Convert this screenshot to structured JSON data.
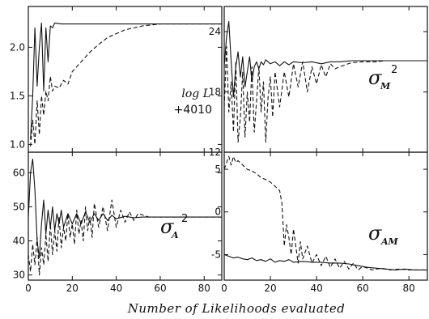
{
  "xlabel": "Number of Likelihoods evaluated",
  "chart_data": [
    {
      "id": "logL",
      "type": "line",
      "annotation": {
        "line1": "log L",
        "line2": "+4010"
      },
      "xlim": [
        0,
        88
      ],
      "ylim": [
        0.92,
        2.42
      ],
      "xticks": [
        0,
        20,
        40,
        60,
        80
      ],
      "yticks": [
        1.0,
        1.5,
        2.0
      ],
      "ytick_labels": [
        "1.0",
        "1.5",
        "2.0"
      ],
      "ytick_side": "left",
      "series": [
        {
          "style": "solid",
          "x": [
            1,
            2,
            3,
            4,
            5,
            6,
            7,
            8,
            9,
            10,
            11,
            12,
            15,
            20,
            30,
            40,
            50,
            60,
            70,
            80,
            88
          ],
          "y": [
            1.05,
            1.5,
            2.2,
            1.6,
            2.0,
            2.25,
            1.55,
            2.2,
            1.85,
            2.22,
            2.2,
            2.25,
            2.24,
            2.24,
            2.24,
            2.24,
            2.24,
            2.24,
            2.24,
            2.24,
            2.24
          ]
        },
        {
          "style": "dashed",
          "x": [
            1,
            2,
            3,
            4,
            5,
            6,
            7,
            8,
            9,
            10,
            11,
            12,
            14,
            16,
            18,
            20,
            24,
            28,
            32,
            36,
            40,
            44,
            48,
            52,
            56,
            60,
            70,
            80,
            88
          ],
          "y": [
            0.98,
            1.25,
            1.0,
            1.45,
            1.1,
            1.5,
            1.3,
            1.55,
            1.45,
            1.7,
            1.55,
            1.6,
            1.58,
            1.66,
            1.62,
            1.75,
            1.85,
            1.95,
            2.03,
            2.1,
            2.14,
            2.18,
            2.2,
            2.22,
            2.23,
            2.24,
            2.24,
            2.24,
            2.24
          ]
        }
      ]
    },
    {
      "id": "sigmaM2",
      "type": "line",
      "annotation": {
        "symbol": "σ",
        "subscript": "M",
        "superscript": "2"
      },
      "xlim": [
        0,
        88
      ],
      "ylim": [
        12,
        26.5
      ],
      "xticks": [
        0,
        20,
        40,
        60,
        80
      ],
      "yticks": [
        12,
        18,
        24
      ],
      "ytick_labels": [
        "12",
        "18",
        "24"
      ],
      "ytick_side": "left",
      "series": [
        {
          "style": "solid",
          "x": [
            0,
            1,
            2,
            3,
            4,
            5,
            6,
            7,
            8,
            9,
            10,
            11,
            12,
            13,
            14,
            15,
            16,
            17,
            18,
            20,
            22,
            24,
            26,
            28,
            30,
            34,
            38,
            42,
            46,
            50,
            55,
            60,
            70,
            80,
            88
          ],
          "y": [
            20.5,
            23.5,
            25.0,
            21.0,
            17.5,
            20.5,
            22.0,
            19.5,
            21.5,
            18.5,
            20.0,
            21.5,
            19.0,
            20.5,
            21.0,
            20.3,
            21.0,
            20.7,
            21.2,
            20.8,
            21.0,
            20.6,
            21.0,
            20.7,
            21.0,
            20.9,
            21.0,
            20.8,
            21.0,
            21.0,
            21.1,
            21.1,
            21.1,
            21.1,
            21.1
          ]
        },
        {
          "style": "dashed",
          "x": [
            0,
            1,
            2,
            3,
            4,
            5,
            6,
            7,
            8,
            9,
            10,
            11,
            12,
            13,
            14,
            15,
            16,
            17,
            18,
            19,
            20,
            21,
            22,
            24,
            26,
            28,
            30,
            32,
            34,
            36,
            38,
            40,
            42,
            44,
            46,
            48,
            50,
            55,
            60,
            65,
            70,
            80,
            88
          ],
          "y": [
            16.5,
            22.5,
            16.0,
            19.0,
            14.0,
            21.0,
            13.0,
            15.5,
            20.0,
            13.5,
            18.0,
            15.0,
            20.5,
            14.0,
            17.0,
            20.5,
            16.0,
            19.0,
            13.0,
            17.5,
            19.5,
            15.5,
            20.0,
            16.5,
            20.0,
            17.5,
            20.8,
            18.5,
            21.0,
            18.0,
            20.5,
            18.8,
            20.7,
            19.5,
            20.8,
            20.3,
            20.5,
            20.9,
            21.0,
            21.0,
            21.1,
            21.1,
            21.1
          ]
        }
      ]
    },
    {
      "id": "sigmaA2",
      "type": "line",
      "annotation": {
        "symbol": "σ",
        "subscript": "A",
        "superscript": "2"
      },
      "xlim": [
        0,
        88
      ],
      "ylim": [
        28.5,
        66
      ],
      "xticks": [
        0,
        20,
        40,
        60,
        80
      ],
      "xtick_labels": [
        "0",
        "20",
        "40",
        "60",
        "80"
      ],
      "yticks": [
        30,
        40,
        50,
        60
      ],
      "ytick_labels": [
        "30",
        "40",
        "50",
        "60"
      ],
      "ytick_side": "left",
      "series": [
        {
          "style": "solid",
          "x": [
            0,
            1,
            2,
            3,
            4,
            5,
            6,
            7,
            8,
            9,
            10,
            11,
            12,
            13,
            14,
            15,
            16,
            18,
            20,
            22,
            24,
            26,
            28,
            30,
            32,
            34,
            36,
            38,
            40,
            44,
            48,
            52,
            56,
            60,
            70,
            80,
            88
          ],
          "y": [
            47.0,
            60.0,
            64.0,
            55.0,
            40.0,
            35.0,
            45.0,
            52.0,
            42.0,
            49.0,
            44.0,
            50.0,
            43.0,
            48.0,
            45.0,
            49.0,
            44.0,
            48.0,
            45.0,
            48.0,
            45.0,
            48.5,
            45.5,
            48.0,
            46.0,
            48.0,
            46.0,
            47.5,
            46.5,
            47.2,
            46.8,
            47.0,
            47.0,
            47.0,
            47.0,
            47.0,
            47.0
          ]
        },
        {
          "style": "dashed",
          "x": [
            0,
            1,
            2,
            3,
            4,
            5,
            6,
            7,
            8,
            9,
            10,
            11,
            12,
            13,
            14,
            15,
            16,
            17,
            18,
            19,
            20,
            21,
            22,
            23,
            24,
            25,
            26,
            27,
            28,
            29,
            30,
            32,
            34,
            36,
            38,
            40,
            42,
            44,
            46,
            48,
            50,
            55,
            60,
            65,
            70,
            80,
            88
          ],
          "y": [
            36.0,
            31.0,
            39.0,
            33.0,
            41.0,
            30.0,
            38.0,
            33.0,
            42.0,
            34.0,
            45.0,
            36.0,
            43.0,
            37.0,
            47.0,
            38.0,
            44.0,
            40.0,
            48.0,
            41.0,
            45.0,
            39.0,
            49.0,
            42.0,
            46.0,
            40.0,
            50.0,
            43.0,
            47.0,
            41.0,
            51.0,
            44.0,
            50.0,
            43.0,
            52.0,
            44.0,
            49.0,
            45.5,
            48.5,
            46.0,
            48.0,
            47.0,
            47.0,
            47.0,
            47.0,
            47.0,
            47.0
          ]
        }
      ]
    },
    {
      "id": "sigmaAM",
      "type": "line",
      "annotation": {
        "symbol": "σ",
        "subscript": "AM"
      },
      "xlim": [
        0,
        88
      ],
      "ylim": [
        -8,
        7
      ],
      "xticks": [
        0,
        20,
        40,
        60,
        80
      ],
      "xtick_labels": [
        "0",
        "20",
        "40",
        "60",
        "80"
      ],
      "yticks": [
        -5,
        0,
        5
      ],
      "ytick_labels": [
        "-5",
        "0",
        "5"
      ],
      "ytick_side": "left",
      "series": [
        {
          "style": "solid",
          "x": [
            0,
            2,
            4,
            6,
            8,
            10,
            12,
            14,
            16,
            18,
            20,
            22,
            24,
            26,
            28,
            30,
            34,
            38,
            42,
            46,
            50,
            54,
            58,
            62,
            66,
            70,
            74,
            78,
            82,
            86,
            88
          ],
          "y": [
            -5.0,
            -5.2,
            -5.4,
            -5.3,
            -5.5,
            -5.6,
            -5.4,
            -5.7,
            -5.6,
            -5.8,
            -5.5,
            -5.9,
            -5.7,
            -5.8,
            -5.6,
            -5.9,
            -5.8,
            -5.9,
            -5.9,
            -6.0,
            -6.0,
            -6.1,
            -6.3,
            -6.5,
            -6.6,
            -6.7,
            -6.8,
            -6.7,
            -6.8,
            -6.8,
            -6.8
          ]
        },
        {
          "style": "dashed",
          "x": [
            0,
            2,
            3,
            4,
            5,
            6,
            8,
            10,
            12,
            14,
            16,
            18,
            20,
            22,
            24,
            25,
            26,
            27,
            28,
            29,
            30,
            31,
            32,
            33,
            34,
            36,
            38,
            40,
            42,
            44,
            46,
            48,
            50,
            52,
            54,
            56,
            58,
            60,
            64,
            68,
            72,
            76,
            80,
            88
          ],
          "y": [
            5.0,
            6.5,
            5.5,
            6.5,
            5.8,
            6.0,
            5.5,
            5.0,
            4.8,
            4.5,
            4.0,
            3.8,
            3.5,
            3.0,
            2.5,
            1.0,
            -4.0,
            -1.5,
            -3.0,
            -5.0,
            -2.0,
            -4.0,
            -6.0,
            -3.5,
            -5.5,
            -4.0,
            -6.0,
            -5.0,
            -6.3,
            -5.2,
            -6.5,
            -5.5,
            -6.6,
            -5.8,
            -6.7,
            -6.0,
            -6.8,
            -6.4,
            -6.8,
            -6.6,
            -6.8,
            -6.7,
            -6.8,
            -6.8
          ]
        }
      ]
    }
  ]
}
